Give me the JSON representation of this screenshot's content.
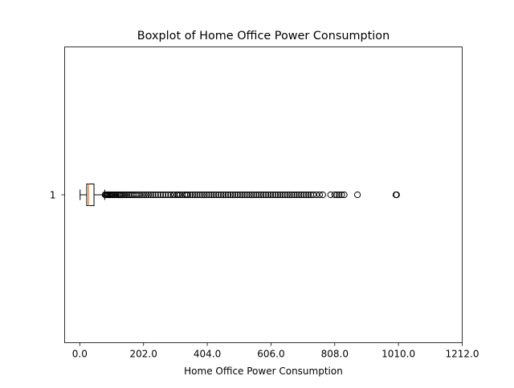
{
  "chart_data": {
    "type": "boxplot",
    "orientation": "horizontal",
    "title": "Boxplot of Home Office Power Consumption",
    "xlabel": "Home Office Power Consumption",
    "ylabel": "",
    "xlim": [
      -48,
      1212
    ],
    "xticks": [
      "0.0",
      "202.0",
      "404.0",
      "606.0",
      "808.0",
      "1010.0",
      "1212.0"
    ],
    "xtick_values": [
      0,
      202,
      404,
      606,
      808,
      1010,
      1212
    ],
    "categories": [
      "1"
    ],
    "boxes": [
      {
        "label": "1",
        "whisker_low": 1,
        "q1": 22,
        "median": 28,
        "q3": 45,
        "whisker_high": 79,
        "outliers": [
          80,
          83,
          86,
          89,
          92,
          95,
          98,
          102,
          106,
          110,
          114,
          118,
          122,
          126,
          130,
          135,
          140,
          145,
          150,
          155,
          160,
          166,
          172,
          178,
          184,
          190,
          197,
          204,
          211,
          218,
          225,
          232,
          240,
          248,
          256,
          264,
          272,
          280,
          288,
          296,
          300,
          308,
          312,
          318,
          325,
          333,
          338,
          342,
          350,
          358,
          365,
          372,
          380,
          388,
          395,
          402,
          410,
          418,
          425,
          432,
          440,
          448,
          455,
          462,
          470,
          478,
          485,
          492,
          500,
          508,
          515,
          522,
          530,
          538,
          545,
          552,
          560,
          568,
          575,
          582,
          590,
          598,
          605,
          612,
          620,
          628,
          635,
          642,
          650,
          658,
          665,
          672,
          680,
          688,
          695,
          702,
          710,
          718,
          725,
          732,
          740,
          750,
          760,
          770,
          795,
          808,
          815,
          822,
          830,
          838,
          880,
          1002,
          1004
        ]
      }
    ],
    "box_face_color": "#ffffff",
    "median_color": "#ff7f0e",
    "line_color": "#000000",
    "grid": false,
    "legend": "none"
  }
}
